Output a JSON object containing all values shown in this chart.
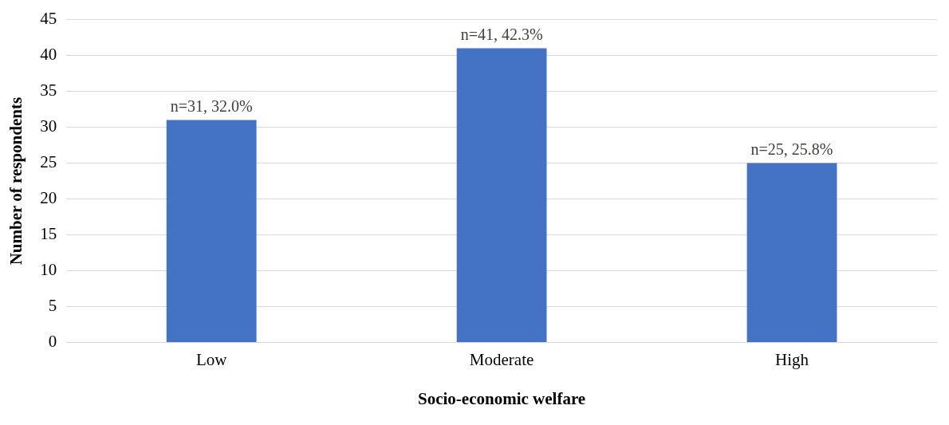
{
  "chart_data": {
    "type": "bar",
    "xlabel": "Socio-economic welfare",
    "ylabel": "Number of respondents",
    "categories": [
      "Low",
      "Moderate",
      "High"
    ],
    "values": [
      31,
      41,
      25
    ],
    "value_labels": [
      "n=31, 32.0%",
      "n=41, 42.3%",
      "n=25, 25.8%"
    ],
    "color": "#4472c4",
    "ylim": [
      0,
      45
    ],
    "yticks": [
      0,
      5,
      10,
      15,
      20,
      25,
      30,
      35,
      40,
      45
    ],
    "grid": "y",
    "legend": false
  }
}
